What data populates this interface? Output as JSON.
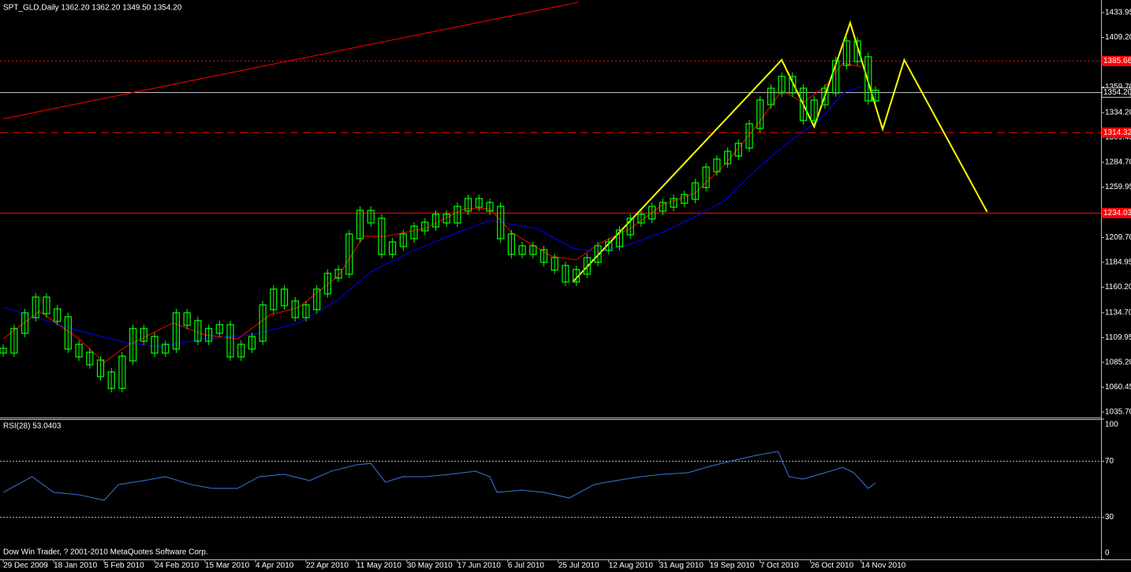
{
  "chart_data": [
    {
      "type": "candlestick",
      "title": "SPT_GLD,Daily  1362.20 1362.20 1349.50 1354.20",
      "color": "#00ff00",
      "x": [
        0,
        3,
        6,
        9,
        12,
        15,
        18,
        21,
        24,
        27,
        30,
        33,
        36,
        39,
        42,
        45,
        48,
        51,
        54,
        57,
        60,
        63,
        66,
        69,
        72,
        75,
        78,
        81,
        84,
        87,
        90,
        93,
        96,
        99,
        102,
        105,
        108,
        111,
        114,
        117,
        120,
        123,
        126,
        129,
        132,
        135,
        138,
        141,
        144,
        147,
        150,
        153,
        156,
        159,
        162,
        165,
        168,
        171,
        174,
        177,
        180,
        183,
        186,
        189,
        192,
        195,
        198,
        201,
        204,
        207,
        210,
        213,
        216,
        219,
        222,
        225,
        228,
        231,
        234,
        237,
        240,
        242
      ],
      "values": [
        1096.9,
        1116.6,
        1132.3,
        1148.0,
        1136.2,
        1128.4,
        1100.9,
        1093.0,
        1085.2,
        1073.4,
        1061.6,
        1089.1,
        1116.6,
        1108.7,
        1096.9,
        1100.9,
        1132.3,
        1124.5,
        1108.7,
        1116.6,
        1120.5,
        1093.0,
        1100.9,
        1108.7,
        1140.2,
        1155.9,
        1144.1,
        1132.3,
        1140.2,
        1155.9,
        1171.6,
        1175.5,
        1210.9,
        1234.4,
        1226.6,
        1195.2,
        1203.0,
        1210.9,
        1218.7,
        1222.6,
        1230.5,
        1226.6,
        1238.4,
        1246.2,
        1242.3,
        1238.4,
        1210.9,
        1195.2,
        1199.1,
        1195.2,
        1187.3,
        1179.5,
        1167.7,
        1175.5,
        1187.3,
        1199.1,
        1203.0,
        1214.8,
        1226.6,
        1230.5,
        1238.4,
        1242.3,
        1246.2,
        1250.2,
        1261.9,
        1277.6,
        1285.5,
        1293.3,
        1301.2,
        1320.8,
        1344.4,
        1356.2,
        1368.0,
        1356.2,
        1328.7,
        1344.4,
        1356.2,
        1383.7,
        1403.3,
        1387.6,
        1348.3,
        1354.2
      ],
      "overlays": [
        {
          "color": "#ff0000",
          "x": [
            0,
            10,
            21,
            28,
            34,
            47,
            56,
            65,
            74,
            82,
            93,
            100,
            106,
            117,
            128,
            135,
            141,
            152,
            159,
            165,
            174,
            183,
            192,
            200,
            209,
            216,
            222,
            228,
            233,
            238
          ],
          "values": [
            1108.7,
            1136.2,
            1108.7,
            1085.2,
            1100.9,
            1124.5,
            1112.7,
            1108.7,
            1132.3,
            1140.2,
            1171.6,
            1210.9,
            1210.9,
            1218.7,
            1238.4,
            1238.4,
            1214.8,
            1191.3,
            1187.3,
            1203.0,
            1218.7,
            1242.3,
            1254.1,
            1281.6,
            1320.8,
            1356.2,
            1344.4,
            1360.1,
            1383.7,
            1379.8
          ]
        },
        {
          "color": "#0000ff",
          "x": [
            0,
            21,
            34,
            43,
            56,
            69,
            82,
            93,
            102,
            113,
            126,
            135,
            148,
            158,
            165,
            174,
            183,
            192,
            200,
            209,
            218,
            227,
            233,
            238
          ],
          "values": [
            1140.2,
            1116.6,
            1104.8,
            1100.9,
            1108.7,
            1112.7,
            1124.5,
            1148.0,
            1175.5,
            1195.2,
            1214.8,
            1226.6,
            1218.7,
            1199.1,
            1195.2,
            1203.0,
            1214.8,
            1230.5,
            1246.2,
            1277.6,
            1305.1,
            1328.7,
            1353.8,
            1360.1
          ]
        },
        {
          "color": "#ffff00",
          "x": [
            158,
            216,
            225,
            235,
            244,
            250,
            273
          ],
          "values": [
            1165.3,
            1386.8,
            1320.1,
            1423.7,
            1317.7,
            1386.8,
            1235.2
          ]
        },
        {
          "color": "#ff0000",
          "x": [
            0,
            159.5
          ],
          "values": [
            1328.0,
            1444.2
          ]
        }
      ],
      "levels": [
        {
          "value": 1385.66,
          "style": "dotted",
          "color": "#ff0000"
        },
        {
          "value": 1354.2,
          "label": "1354.20",
          "style": "solid",
          "color": "#c0c0c0"
        },
        {
          "value": 1314.32,
          "style": "dashed",
          "color": "#ff0000"
        },
        {
          "value": 1234.03,
          "style": "solid",
          "color": "#ff0000"
        }
      ],
      "xlim": [
        -0.9,
        304.6
      ],
      "ylim": [
        1030.2,
        1446.5
      ],
      "yticks": [
        1433.95,
        {
          "value": 1409.2,
          "label": "1409.20"
        },
        {
          "value": 1359.7,
          "label": "1359.70"
        },
        {
          "value": 1334.2,
          "label": "1334.20"
        },
        1309.45,
        {
          "value": 1284.7,
          "label": "1284.70"
        },
        1259.95,
        {
          "value": 1209.7,
          "label": "1209.70"
        },
        1184.95,
        {
          "value": 1160.2,
          "label": "1160.20"
        },
        {
          "value": 1134.7,
          "label": "1134.70"
        },
        1109.95,
        {
          "value": 1085.2,
          "label": "1085.20"
        },
        1060.45,
        {
          "value": 1035.7,
          "label": "1035.70"
        }
      ],
      "xticks": [
        {
          "value": 0,
          "label": "29 Dec 2009"
        },
        {
          "value": 14,
          "label": "18 Jan 2010"
        },
        {
          "value": 28,
          "label": "5 Feb 2010"
        },
        {
          "value": 42,
          "label": "24 Feb 2010"
        },
        {
          "value": 56,
          "label": "15 Mar 2010"
        },
        {
          "value": 70,
          "label": "4 Apr 2010"
        },
        {
          "value": 84,
          "label": "22 Apr 2010"
        },
        {
          "value": 98,
          "label": "11 May 2010"
        },
        {
          "value": 112,
          "label": "30 May 2010"
        },
        {
          "value": 126,
          "label": "17 Jun 2010"
        },
        {
          "value": 140,
          "label": "6 Jul 2010"
        },
        {
          "value": 154,
          "label": "25 Jul 2010"
        },
        {
          "value": 168,
          "label": "12 Aug 2010"
        },
        {
          "value": 182,
          "label": "31 Aug 2010"
        },
        {
          "value": 196,
          "label": "19 Sep 2010"
        },
        {
          "value": 210,
          "label": "7 Oct 2010"
        },
        {
          "value": 224,
          "label": "26 Oct 2010"
        },
        {
          "value": 238,
          "label": "14 Nov 2010"
        }
      ]
    },
    {
      "type": "line",
      "title": "RSI(28) 53.0403",
      "color": "#3a78d8",
      "x": [
        0,
        8,
        14,
        21,
        28,
        32,
        39,
        45,
        52,
        58,
        65,
        71,
        78,
        85,
        91,
        98,
        102,
        106,
        111,
        117,
        124,
        131,
        135,
        137,
        144,
        150,
        157,
        164,
        170,
        177,
        183,
        190,
        196,
        203,
        209,
        215,
        218,
        222,
        228,
        233,
        236,
        240,
        242
      ],
      "values": [
        47.8,
        59.0,
        47.8,
        46.1,
        42.1,
        53.4,
        56.2,
        59.0,
        53.4,
        50.6,
        50.6,
        59.0,
        60.7,
        56.2,
        62.9,
        67.4,
        68.5,
        55.1,
        59.0,
        59.0,
        60.7,
        62.9,
        59.0,
        47.8,
        49.4,
        47.8,
        43.8,
        53.4,
        56.2,
        59.0,
        60.7,
        61.8,
        66.3,
        70.8,
        74.2,
        77.0,
        59.0,
        57.3,
        61.8,
        65.7,
        61.8,
        50.6,
        54.5
      ],
      "xlim": [
        -0.9,
        304.6
      ],
      "ylim": [
        0,
        100
      ],
      "yticks": [
        100,
        70,
        30,
        0
      ]
    }
  ],
  "footer": "Dow Win Trader, ? 2001-2010 MetaQuotes Software Corp."
}
